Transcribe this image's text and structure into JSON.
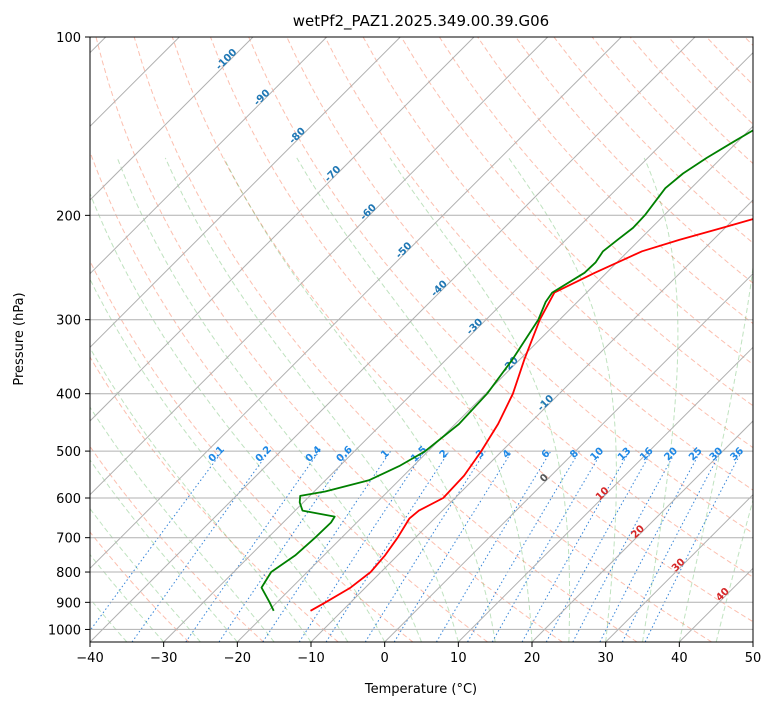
{
  "chart_data": {
    "type": "line",
    "subtype": "skew-T log-P diagram",
    "title": "wetPf2_PAZ1.2025.349.00.39.G06",
    "xlabel": "Temperature (°C)",
    "ylabel": "Pressure (hPa)",
    "xlim": [
      -40,
      50
    ],
    "ylim": [
      1050,
      100
    ],
    "x_ticks": [
      "−40",
      "−30",
      "−20",
      "−10",
      "0",
      "10",
      "20",
      "30",
      "40",
      "50"
    ],
    "y_ticks": [
      "100",
      "200",
      "300",
      "400",
      "500",
      "600",
      "700",
      "800",
      "900",
      "1000"
    ],
    "grid": true,
    "isotherm_labels": [
      "-100",
      "-90",
      "-80",
      "-70",
      "-60",
      "-50",
      "-40",
      "-30",
      "-20",
      "-10",
      "0",
      "10",
      "20",
      "30",
      "40"
    ],
    "mixing_ratio_labels": [
      "0.1",
      "0.2",
      "0.4",
      "0.6",
      "1",
      "1.5",
      "2",
      "3",
      "4",
      "6",
      "8",
      "10",
      "13",
      "16",
      "20",
      "25",
      "30",
      "36"
    ],
    "series": [
      {
        "name": "Temperature",
        "color": "#ff0000",
        "points": [
          {
            "p": 930,
            "t": -14.3
          },
          {
            "p": 900,
            "t": -13.4
          },
          {
            "p": 850,
            "t": -12.0
          },
          {
            "p": 800,
            "t": -11.4
          },
          {
            "p": 750,
            "t": -11.7
          },
          {
            "p": 700,
            "t": -12.4
          },
          {
            "p": 650,
            "t": -13.4
          },
          {
            "p": 630,
            "t": -13.2
          },
          {
            "p": 600,
            "t": -11.6
          },
          {
            "p": 550,
            "t": -11.8
          },
          {
            "p": 500,
            "t": -12.8
          },
          {
            "p": 450,
            "t": -14.2
          },
          {
            "p": 400,
            "t": -16.3
          },
          {
            "p": 350,
            "t": -19.4
          },
          {
            "p": 300,
            "t": -22.7
          },
          {
            "p": 270,
            "t": -24.4
          },
          {
            "p": 250,
            "t": -21.6
          },
          {
            "p": 230,
            "t": -18.1
          },
          {
            "p": 220,
            "t": -14.6
          },
          {
            "p": 210,
            "t": -10.4
          },
          {
            "p": 200,
            "t": -6.1
          },
          {
            "p": 190,
            "t": -3.6
          },
          {
            "p": 180,
            "t": -1.3
          },
          {
            "p": 170,
            "t": 1.4
          },
          {
            "p": 160,
            "t": 4.1
          },
          {
            "p": 150,
            "t": 6.9
          },
          {
            "p": 140,
            "t": 10.3
          },
          {
            "p": 130,
            "t": 13.2
          },
          {
            "p": 120,
            "t": 15.7
          },
          {
            "p": 110,
            "t": 18.4
          },
          {
            "p": 100,
            "t": 21.0
          }
        ]
      },
      {
        "name": "Dewpoint",
        "color": "#008000",
        "points": [
          {
            "p": 930,
            "t": -19.3
          },
          {
            "p": 900,
            "t": -21.0
          },
          {
            "p": 850,
            "t": -24.1
          },
          {
            "p": 800,
            "t": -24.9
          },
          {
            "p": 750,
            "t": -23.9
          },
          {
            "p": 700,
            "t": -23.6
          },
          {
            "p": 660,
            "t": -23.5
          },
          {
            "p": 645,
            "t": -23.8
          },
          {
            "p": 630,
            "t": -29.0
          },
          {
            "p": 610,
            "t": -30.5
          },
          {
            "p": 595,
            "t": -31.3
          },
          {
            "p": 585,
            "t": -28.5
          },
          {
            "p": 560,
            "t": -24.1
          },
          {
            "p": 530,
            "t": -21.9
          },
          {
            "p": 500,
            "t": -20.4
          },
          {
            "p": 450,
            "t": -19.5
          },
          {
            "p": 400,
            "t": -19.8
          },
          {
            "p": 350,
            "t": -21.0
          },
          {
            "p": 300,
            "t": -22.9
          },
          {
            "p": 280,
            "t": -24.3
          },
          {
            "p": 270,
            "t": -24.7
          },
          {
            "p": 250,
            "t": -23.0
          },
          {
            "p": 240,
            "t": -22.9
          },
          {
            "p": 230,
            "t": -23.4
          },
          {
            "p": 220,
            "t": -23.0
          },
          {
            "p": 210,
            "t": -22.5
          },
          {
            "p": 200,
            "t": -22.6
          },
          {
            "p": 180,
            "t": -23.5
          },
          {
            "p": 170,
            "t": -23.1
          },
          {
            "p": 160,
            "t": -22.0
          },
          {
            "p": 150,
            "t": -20.5
          },
          {
            "p": 140,
            "t": -18.8
          },
          {
            "p": 130,
            "t": -17.0
          },
          {
            "p": 120,
            "t": -15.0
          },
          {
            "p": 110,
            "t": -13.0
          },
          {
            "p": 100,
            "t": -10.5
          }
        ]
      }
    ]
  }
}
